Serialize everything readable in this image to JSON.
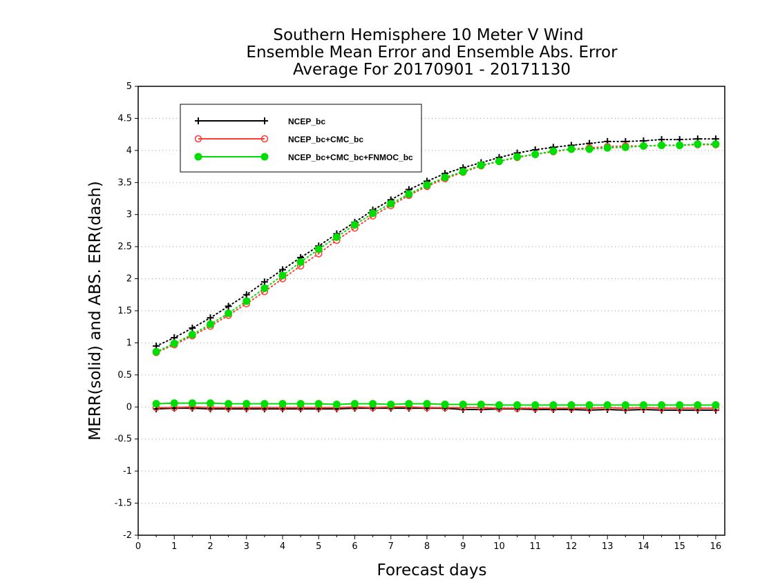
{
  "chart_data": {
    "type": "line",
    "title": [
      "Southern Hemisphere 10 Meter V Wind",
      "Ensemble Mean Error and Ensemble Abs. Error",
      "Average For 20170901 - 20171130"
    ],
    "xlabel": "Forecast days",
    "ylabel": "MERR(solid) and ABS. ERR(dash)",
    "xlim": [
      0,
      16.25
    ],
    "ylim": [
      -2,
      5
    ],
    "xticks": [
      0,
      1,
      2,
      3,
      4,
      5,
      6,
      7,
      8,
      9,
      10,
      11,
      12,
      13,
      14,
      15,
      16
    ],
    "yticks": [
      -2,
      -1.5,
      -1,
      -0.5,
      0,
      0.5,
      1,
      1.5,
      2,
      2.5,
      3,
      3.5,
      4,
      4.5,
      5
    ],
    "ytick_labels": [
      "-2",
      "-1.5",
      "-1",
      "-0.5",
      "0",
      "0.5",
      "1",
      "1.5",
      "2",
      "2.5",
      "3",
      "3.5",
      "4",
      "4.5",
      "5"
    ],
    "grid": "horizontal dotted",
    "legend_position": "top-left",
    "x": [
      0.5,
      1,
      1.5,
      2,
      2.5,
      3,
      3.5,
      4,
      4.5,
      5,
      5.5,
      6,
      6.5,
      7,
      7.5,
      8,
      8.5,
      9,
      9.5,
      10,
      10.5,
      11,
      11.5,
      12,
      12.5,
      13,
      13.5,
      14,
      14.5,
      15,
      15.5,
      16
    ],
    "series": [
      {
        "name": "NCEP_bc",
        "color": "#000000",
        "marker": "plus",
        "abs_err": [
          0.95,
          1.08,
          1.23,
          1.39,
          1.57,
          1.75,
          1.95,
          2.14,
          2.33,
          2.51,
          2.7,
          2.88,
          3.07,
          3.23,
          3.39,
          3.52,
          3.64,
          3.73,
          3.81,
          3.89,
          3.96,
          4.01,
          4.05,
          4.08,
          4.11,
          4.14,
          4.14,
          4.15,
          4.17,
          4.17,
          4.18,
          4.18
        ],
        "mean_err": [
          -0.03,
          -0.02,
          -0.02,
          -0.03,
          -0.03,
          -0.03,
          -0.03,
          -0.03,
          -0.03,
          -0.03,
          -0.03,
          -0.02,
          -0.02,
          -0.02,
          -0.02,
          -0.02,
          -0.02,
          -0.04,
          -0.04,
          -0.03,
          -0.03,
          -0.04,
          -0.04,
          -0.04,
          -0.05,
          -0.04,
          -0.05,
          -0.04,
          -0.05,
          -0.05,
          -0.05,
          -0.05
        ]
      },
      {
        "name": "NCEP_bc+CMC_bc",
        "color": "#ff3b30",
        "marker": "open-circle",
        "abs_err": [
          0.85,
          0.97,
          1.11,
          1.26,
          1.43,
          1.61,
          1.8,
          2.0,
          2.2,
          2.39,
          2.6,
          2.79,
          2.98,
          3.14,
          3.3,
          3.44,
          3.56,
          3.66,
          3.76,
          3.83,
          3.89,
          3.94,
          3.98,
          4.02,
          4.04,
          4.06,
          4.07,
          4.07,
          4.08,
          4.08,
          4.09,
          4.09
        ],
        "mean_err": [
          -0.01,
          -0.01,
          0.0,
          -0.01,
          -0.01,
          -0.01,
          -0.01,
          -0.01,
          -0.01,
          -0.01,
          -0.01,
          0.0,
          -0.01,
          0.0,
          0.0,
          -0.01,
          -0.01,
          -0.01,
          -0.01,
          -0.02,
          -0.02,
          -0.02,
          -0.02,
          -0.02,
          -0.02,
          -0.01,
          -0.02,
          -0.01,
          -0.02,
          -0.02,
          -0.02,
          -0.02
        ]
      },
      {
        "name": "NCEP_bc+CMC_bc+FNMOC_bc",
        "color": "#00dd00",
        "marker": "filled-circle",
        "abs_err": [
          0.86,
          0.99,
          1.13,
          1.29,
          1.46,
          1.65,
          1.85,
          2.05,
          2.26,
          2.46,
          2.65,
          2.84,
          3.02,
          3.17,
          3.32,
          3.46,
          3.58,
          3.67,
          3.77,
          3.83,
          3.9,
          3.94,
          3.99,
          4.02,
          4.02,
          4.04,
          4.05,
          4.07,
          4.08,
          4.08,
          4.1,
          4.1
        ],
        "mean_err": [
          0.05,
          0.06,
          0.06,
          0.06,
          0.05,
          0.05,
          0.05,
          0.05,
          0.05,
          0.05,
          0.04,
          0.05,
          0.05,
          0.04,
          0.05,
          0.05,
          0.04,
          0.04,
          0.04,
          0.03,
          0.03,
          0.03,
          0.03,
          0.03,
          0.03,
          0.03,
          0.03,
          0.03,
          0.03,
          0.03,
          0.03,
          0.03
        ]
      }
    ]
  }
}
